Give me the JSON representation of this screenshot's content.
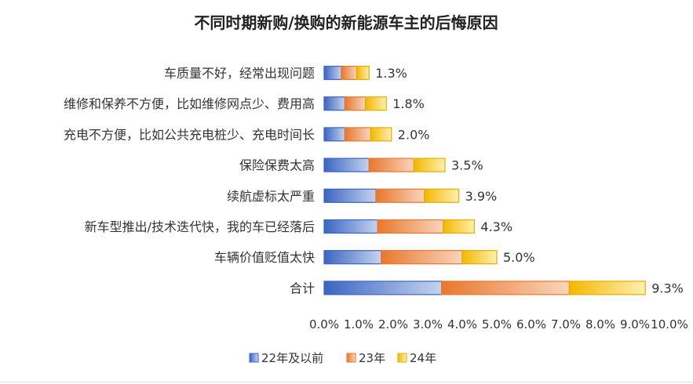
{
  "chart_data": {
    "type": "bar",
    "orientation": "horizontal",
    "stacked": true,
    "title": "不同时期新购/换购的新能源车主的后悔原因",
    "categories": [
      "车质量不好，经常出现问题",
      "维修和保养不方便，比如维修网点少、费用高",
      "充电不方便，比如公共充电桩少、充电时间长",
      "保险保费太高",
      "续航虚标太严重",
      "新车型推出/技术迭代快，我的车已经落后",
      "车辆价值贬值太快",
      "合计"
    ],
    "series": [
      {
        "name": "22年及以前",
        "color": "#4472c4",
        "values": [
          0.5,
          0.6,
          0.6,
          1.3,
          1.5,
          1.55,
          1.65,
          3.4
        ]
      },
      {
        "name": "23年",
        "color": "#ed7d31",
        "values": [
          0.45,
          0.6,
          0.75,
          1.3,
          1.4,
          1.9,
          2.35,
          3.7
        ]
      },
      {
        "name": "24年",
        "color": "#ffc000",
        "values": [
          0.35,
          0.6,
          0.6,
          0.9,
          1.0,
          0.9,
          1.0,
          2.2
        ]
      }
    ],
    "totals": [
      "1.3%",
      "1.8%",
      "2.0%",
      "3.5%",
      "3.9%",
      "4.3%",
      "5.0%",
      "9.3%"
    ],
    "xticks": [
      "0.0%",
      "1.0%",
      "2.0%",
      "3.0%",
      "4.0%",
      "5.0%",
      "6.0%",
      "7.0%",
      "8.0%",
      "9.0%",
      "10.0%"
    ],
    "xlim": [
      0,
      10
    ],
    "legend_position": "bottom",
    "grid": false
  }
}
